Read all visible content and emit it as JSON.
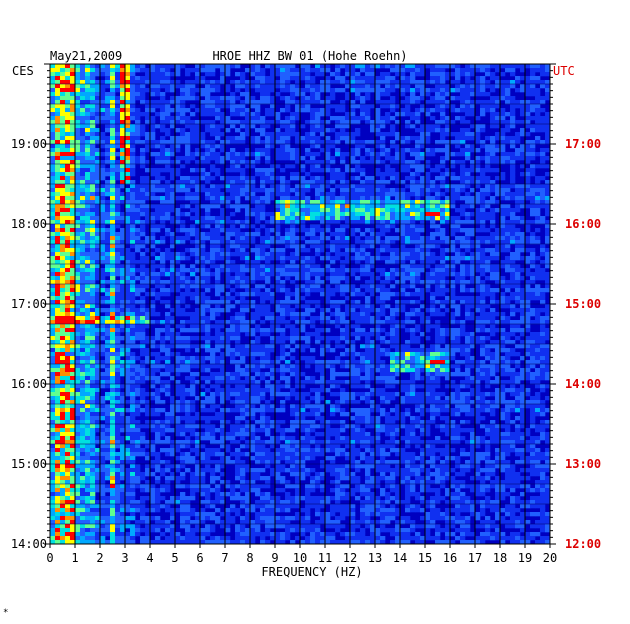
{
  "chart_data": {
    "type": "heatmap",
    "date": "May21,2009",
    "title": "HROE HHZ BW 01 (Hohe Roehn)",
    "left_timezone": "CES",
    "right_timezone": "UTC",
    "xlabel": "FREQUENCY (HZ)",
    "xlim": [
      0,
      20
    ],
    "x_ticks": [
      "0",
      "1",
      "2",
      "3",
      "4",
      "5",
      "6",
      "7",
      "8",
      "9",
      "10",
      "11",
      "12",
      "13",
      "14",
      "15",
      "16",
      "17",
      "18",
      "19",
      "20"
    ],
    "left_time_ticks": [
      "14:00",
      "15:00",
      "16:00",
      "17:00",
      "18:00",
      "19:00"
    ],
    "right_time_ticks": [
      "12:00",
      "13:00",
      "14:00",
      "15:00",
      "16:00",
      "17:00"
    ],
    "colors": {
      "background": "#0000c0",
      "low": "#2050ff",
      "mid": "#00d0ff",
      "high": "#ffff00",
      "peak": "#ff0000",
      "utc_label": "#dd0000"
    },
    "features": [
      {
        "name": "microseism band",
        "freq_range_hz": [
          0.2,
          1.0
        ],
        "intensity": "high"
      },
      {
        "name": "line at 2.5 Hz",
        "freq_hz": 2.5,
        "intensity": "medium"
      },
      {
        "name": "early activity near 3 Hz",
        "freq_range_hz": [
          2.8,
          3.2
        ],
        "intensity": "high"
      },
      {
        "name": "broadband line ~18:10 CES",
        "freq_range_hz": [
          9,
          16
        ],
        "intensity": "medium",
        "peak_hz": 15.2
      },
      {
        "name": "event ~16:15 CES",
        "freq_range_hz": [
          13.5,
          16
        ],
        "intensity": "medium"
      }
    ],
    "extra_mark": "*"
  }
}
